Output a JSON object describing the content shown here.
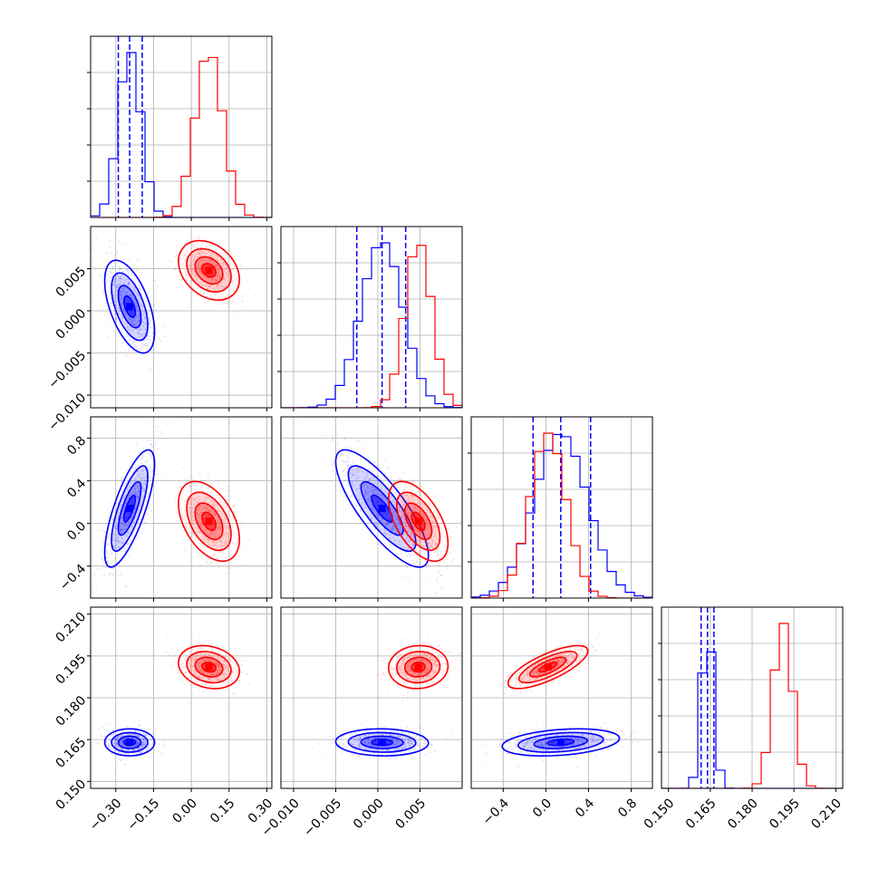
{
  "chart_data": {
    "type": "corner",
    "title": "",
    "grid": true,
    "colors": {
      "series_a": "#0000ff",
      "series_b": "#ff0000"
    },
    "parameters": [
      {
        "ticks": [
          -0.3,
          -0.15,
          0.0,
          0.15,
          0.3
        ],
        "tick_labels": [
          "−0.30",
          "−0.15",
          "0.00",
          "0.15",
          "0.30"
        ],
        "range": [
          -0.4,
          0.32
        ]
      },
      {
        "ticks": [
          -0.01,
          -0.005,
          0.0,
          0.005
        ],
        "tick_labels": [
          "−0.010",
          "−0.005",
          "0.000",
          "0.005"
        ],
        "range": [
          -0.0115,
          0.01
        ]
      },
      {
        "ticks": [
          -0.4,
          0.0,
          0.4,
          0.8
        ],
        "tick_labels": [
          "−0.4",
          "0.0",
          "0.4",
          "0.8"
        ],
        "range": [
          -0.7,
          1.0
        ]
      },
      {
        "ticks": [
          0.15,
          0.165,
          0.18,
          0.195,
          0.21
        ],
        "tick_labels": [
          "0.150",
          "0.165",
          "0.180",
          "0.195",
          "0.210"
        ],
        "range": [
          0.1475,
          0.2125
        ]
      }
    ],
    "series": [
      {
        "key": "series_a",
        "color": "#0000ff",
        "mean": [
          -0.245,
          0.0005,
          0.14,
          0.164
        ],
        "sd": [
          0.045,
          0.0025,
          0.25,
          0.0022
        ],
        "corr": [
          [
            1,
            -0.55,
            0.75,
            0.0
          ],
          [
            -0.55,
            1,
            -0.8,
            -0.05
          ],
          [
            0.75,
            -0.8,
            1,
            0.3
          ],
          [
            0.0,
            -0.05,
            0.3,
            1
          ]
        ],
        "quantiles": [
          [
            -0.29,
            -0.245,
            -0.195
          ],
          [
            -0.0025,
            0.0005,
            0.0033
          ],
          [
            -0.12,
            0.14,
            0.42
          ],
          [
            0.1617,
            0.164,
            0.1663
          ]
        ]
      },
      {
        "key": "series_b",
        "color": "#ff0000",
        "mean": [
          0.07,
          0.0048,
          0.02,
          0.191
        ],
        "sd": [
          0.055,
          0.0016,
          0.17,
          0.0035
        ],
        "corr": [
          [
            1,
            -0.3,
            -0.45,
            -0.2
          ],
          [
            -0.3,
            1,
            -0.55,
            0.05
          ],
          [
            -0.45,
            -0.55,
            1,
            0.75
          ],
          [
            -0.2,
            0.05,
            0.75,
            1
          ]
        ]
      }
    ]
  }
}
